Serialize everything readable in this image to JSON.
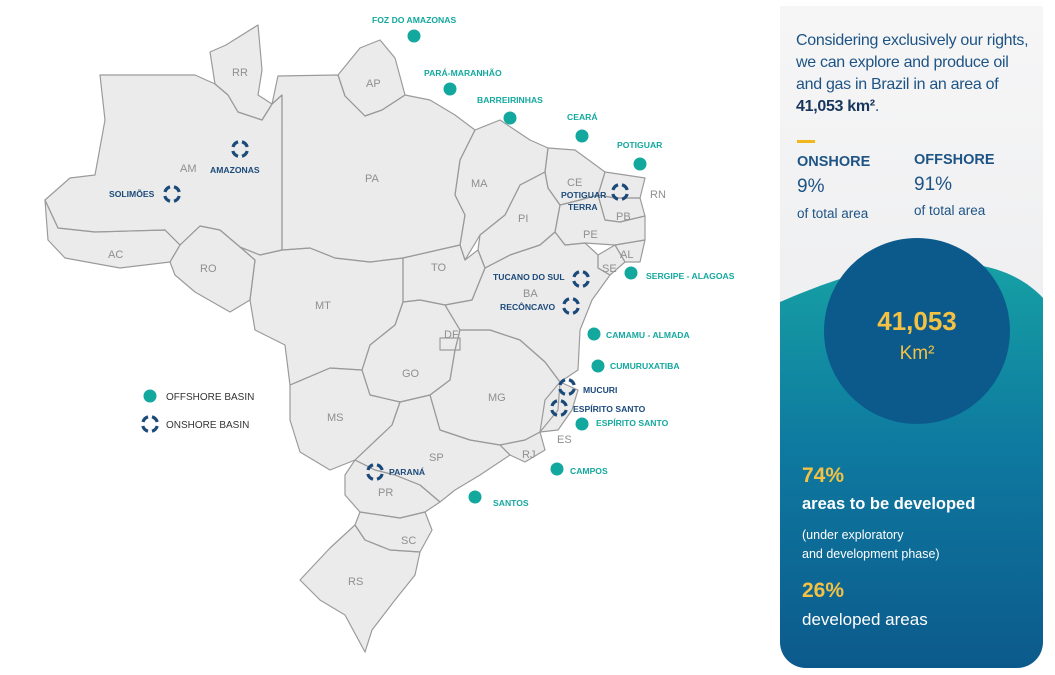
{
  "map": {
    "states": {
      "RR": "RR",
      "AP": "AP",
      "AM": "AM",
      "PA": "PA",
      "MA": "MA",
      "CE": "CE",
      "RN": "RN",
      "PB": "PB",
      "PI": "PI",
      "PE": "PE",
      "AL": "AL",
      "SE": "SE",
      "AC": "AC",
      "RO": "RO",
      "TO": "TO",
      "BA": "BA",
      "MT": "MT",
      "DF": "DF",
      "GO": "GO",
      "MG": "MG",
      "MS": "MS",
      "ES": "ES",
      "SP": "SP",
      "RJ": "RJ",
      "PR": "PR",
      "SC": "SC",
      "RS": "RS"
    },
    "offshore_basins": {
      "foz": "FOZ DO AMAZONAS",
      "para": "PARÁ-MARANHÃO",
      "barr": "BARREIRINHAS",
      "ceara": "CEARÁ",
      "potiguar": "POTIGUAR",
      "sergipe": "SERGIPE - ALAGOAS",
      "camamu": "CAMAMU - ALMADA",
      "cumuru": "CUMURUXATIBA",
      "esp": "ESPÍRITO SANTO",
      "campos": "CAMPOS",
      "santos": "SANTOS"
    },
    "onshore_basins": {
      "amazonas": "AMAZONAS",
      "solimoes": "SOLIMÕES",
      "potiguar_terra_1": "POTIGUAR",
      "potiguar_terra_2": "TERRA",
      "tucano": "TUCANO DO SUL",
      "reconcavo": "RECÔNCAVO",
      "mucuri": "MUCURI",
      "esp_on": "ESPÍRITO SANTO",
      "parana": "PARANÁ"
    },
    "legend": {
      "offshore": "OFFSHORE BASIN",
      "onshore": "ONSHORE BASIN"
    },
    "colors": {
      "offshore": "#13a89e",
      "onshore": "#1b4a7a",
      "land": "#ebebeb",
      "border": "#9a9a9a"
    },
    "icons": {
      "offshore": "filled-circle-icon",
      "onshore": "circular-arrows-icon"
    }
  },
  "panel": {
    "intro_text": "Considering exclusively our rights, we can explore and produce oil and gas in Brazil in an area of",
    "intro_area": "41,053 km²",
    "intro_end": ".",
    "onshore_head": "ONSHORE",
    "onshore_pct": "9%",
    "onshore_sub": "of total area",
    "offshore_head": "OFFSHORE",
    "offshore_pct": "91%",
    "offshore_sub": "of total area",
    "circle_value": "41,053",
    "circle_unit": "Km²",
    "dev_pct": "74%",
    "dev_label": "areas to be developed",
    "dev_note_1": "(under exploratory",
    "dev_note_2": "and development phase)",
    "developed_pct": "26%",
    "developed_label": "developed areas",
    "colors": {
      "accent": "#f1b81d",
      "navy": "#1e5485",
      "teal": "#0f8fa0",
      "deep": "#0c5a8c",
      "gold": "#f3c244"
    }
  }
}
